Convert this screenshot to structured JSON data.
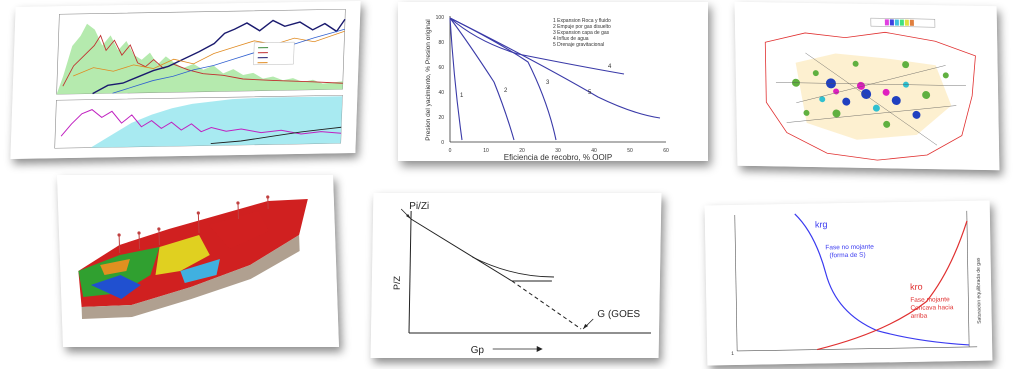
{
  "panel2": {
    "legend": [
      "1  Expansion Roca y fluido",
      "2  Empuje por gas disuelto",
      "3  Expansion capa de gas",
      "4  Influx de agua",
      "5  Drenaje gravitacional"
    ],
    "ylabel": "Presion del yacimiento, % Presion original",
    "xlabel": "Eficiencia de recobro, % OOIP",
    "yticks": [
      "100",
      "80",
      "60",
      "40",
      "20",
      "0"
    ],
    "xticks": [
      "0",
      "10",
      "20",
      "30",
      "40",
      "50",
      "60"
    ],
    "curve_labels": [
      "1",
      "2",
      "3",
      "4",
      "5"
    ]
  },
  "panel5": {
    "start_label": "Pi/Zi",
    "ylabel": "P/Z",
    "xlabel": "Gp",
    "end_label": "G (GOES"
  },
  "panel6": {
    "krg_label": "krg",
    "nonwet_label_1": "Fase no mojante",
    "nonwet_label_2": "(forma de S)",
    "kro_label": "kro",
    "wet_label_1": "Fase mojante",
    "wet_label_2": "Concava hacia",
    "wet_label_3": "arriba",
    "side_label": "Saturacion equilibrada de gas",
    "corner_label": "1"
  },
  "colors": {
    "blue_curve": "#3a3aa8",
    "red_curve": "#e03030",
    "green_fill": "#a8e6a0",
    "cyan_fill": "#9ee8f0"
  }
}
